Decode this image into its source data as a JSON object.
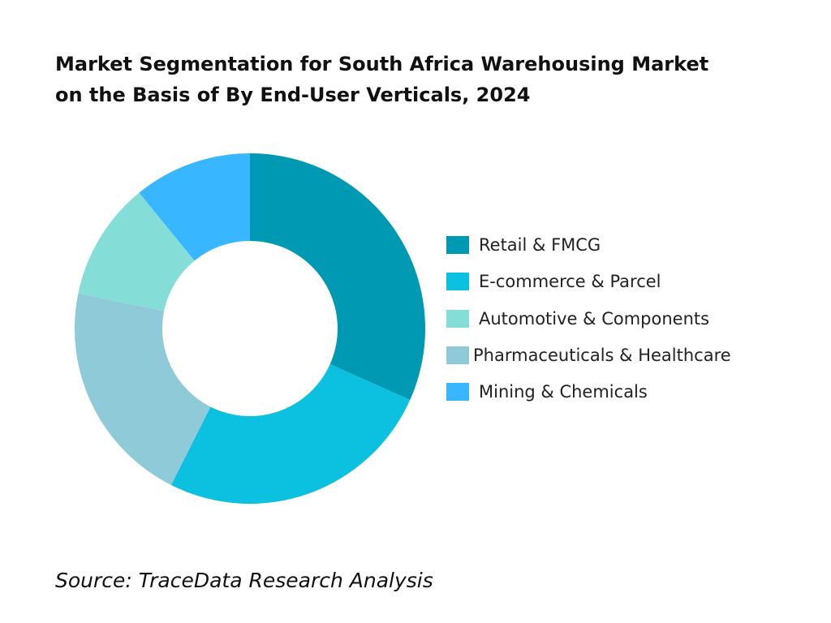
{
  "chart_data": {
    "type": "pie",
    "variant": "donut",
    "title_lines": [
      "Market Segmentation for South Africa Warehousing Market",
      "on the Basis of By End-User Verticals, 2024"
    ],
    "categories": [
      "Retail & FMCG",
      "E-commerce & Parcel",
      "Automotive & Components",
      "Pharmaceuticals & Healthcare",
      "Mining & Chemicals"
    ],
    "values": [
      32,
      26,
      11,
      21,
      11
    ],
    "slice_order": [
      0,
      1,
      3,
      2,
      4
    ],
    "colors": [
      "#0099b4",
      "#0cc1df",
      "#85ddd8",
      "#8ecad8",
      "#38b6ff"
    ],
    "legend_position": "right",
    "source": "Source: TraceData Research Analysis"
  }
}
